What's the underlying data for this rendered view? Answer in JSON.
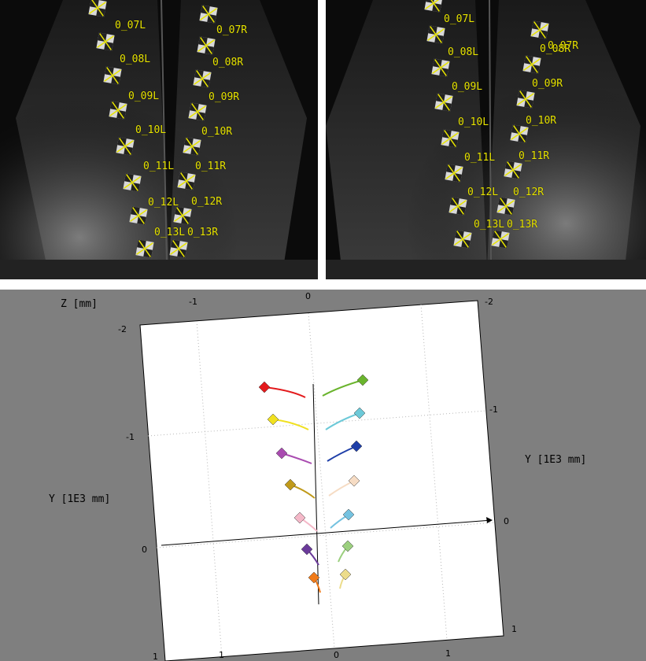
{
  "camera_left": {
    "labels": [
      "0_07L",
      "0_08L",
      "0_09L",
      "0_10L",
      "0_11L",
      "0_12L",
      "0_13L",
      "0_07R",
      "0_08R",
      "0_09R",
      "0_10R",
      "0_11R",
      "0_12R",
      "0_13R"
    ]
  },
  "camera_right": {
    "labels": [
      "0_07L",
      "0_08L",
      "0_09L",
      "0_10L",
      "0_11L",
      "0_12L",
      "0_13L",
      "0_07R",
      "0_08R",
      "0_09R",
      "0_10R",
      "0_11R",
      "0_12R",
      "0_13R"
    ]
  },
  "plot": {
    "z_axis_label": "Z [mm]",
    "y_axis_label_left": "Y [1E3 mm]",
    "y_axis_label_right": "Y [1E3 mm]",
    "top_ticks": [
      "-1",
      "0",
      "-2"
    ],
    "left_ticks": [
      "-2",
      "-1",
      "0",
      "1"
    ],
    "right_ticks": [
      "-1",
      "0",
      "1"
    ],
    "bottom_ticks": [
      "1",
      "0",
      "1"
    ]
  },
  "markers": [
    {
      "name": "0_07L",
      "color": "#e31a1c"
    },
    {
      "name": "0_07R",
      "color": "#6ab42d"
    },
    {
      "name": "0_08L",
      "color": "#f0e020"
    },
    {
      "name": "0_08R",
      "color": "#6cc9d8"
    },
    {
      "name": "0_09L",
      "color": "#a94bb0"
    },
    {
      "name": "0_09R",
      "color": "#1f3fa8"
    },
    {
      "name": "0_10L",
      "color": "#c09a1a"
    },
    {
      "name": "0_10R",
      "color": "#f6dcc4"
    },
    {
      "name": "0_11L",
      "color": "#f4b8c8"
    },
    {
      "name": "0_11R",
      "color": "#74c2e0"
    },
    {
      "name": "0_12L",
      "color": "#6a3a9a"
    },
    {
      "name": "0_12R",
      "color": "#9bcf7e"
    },
    {
      "name": "0_13L",
      "color": "#f07a18"
    },
    {
      "name": "0_13R",
      "color": "#ecdc8a"
    }
  ]
}
